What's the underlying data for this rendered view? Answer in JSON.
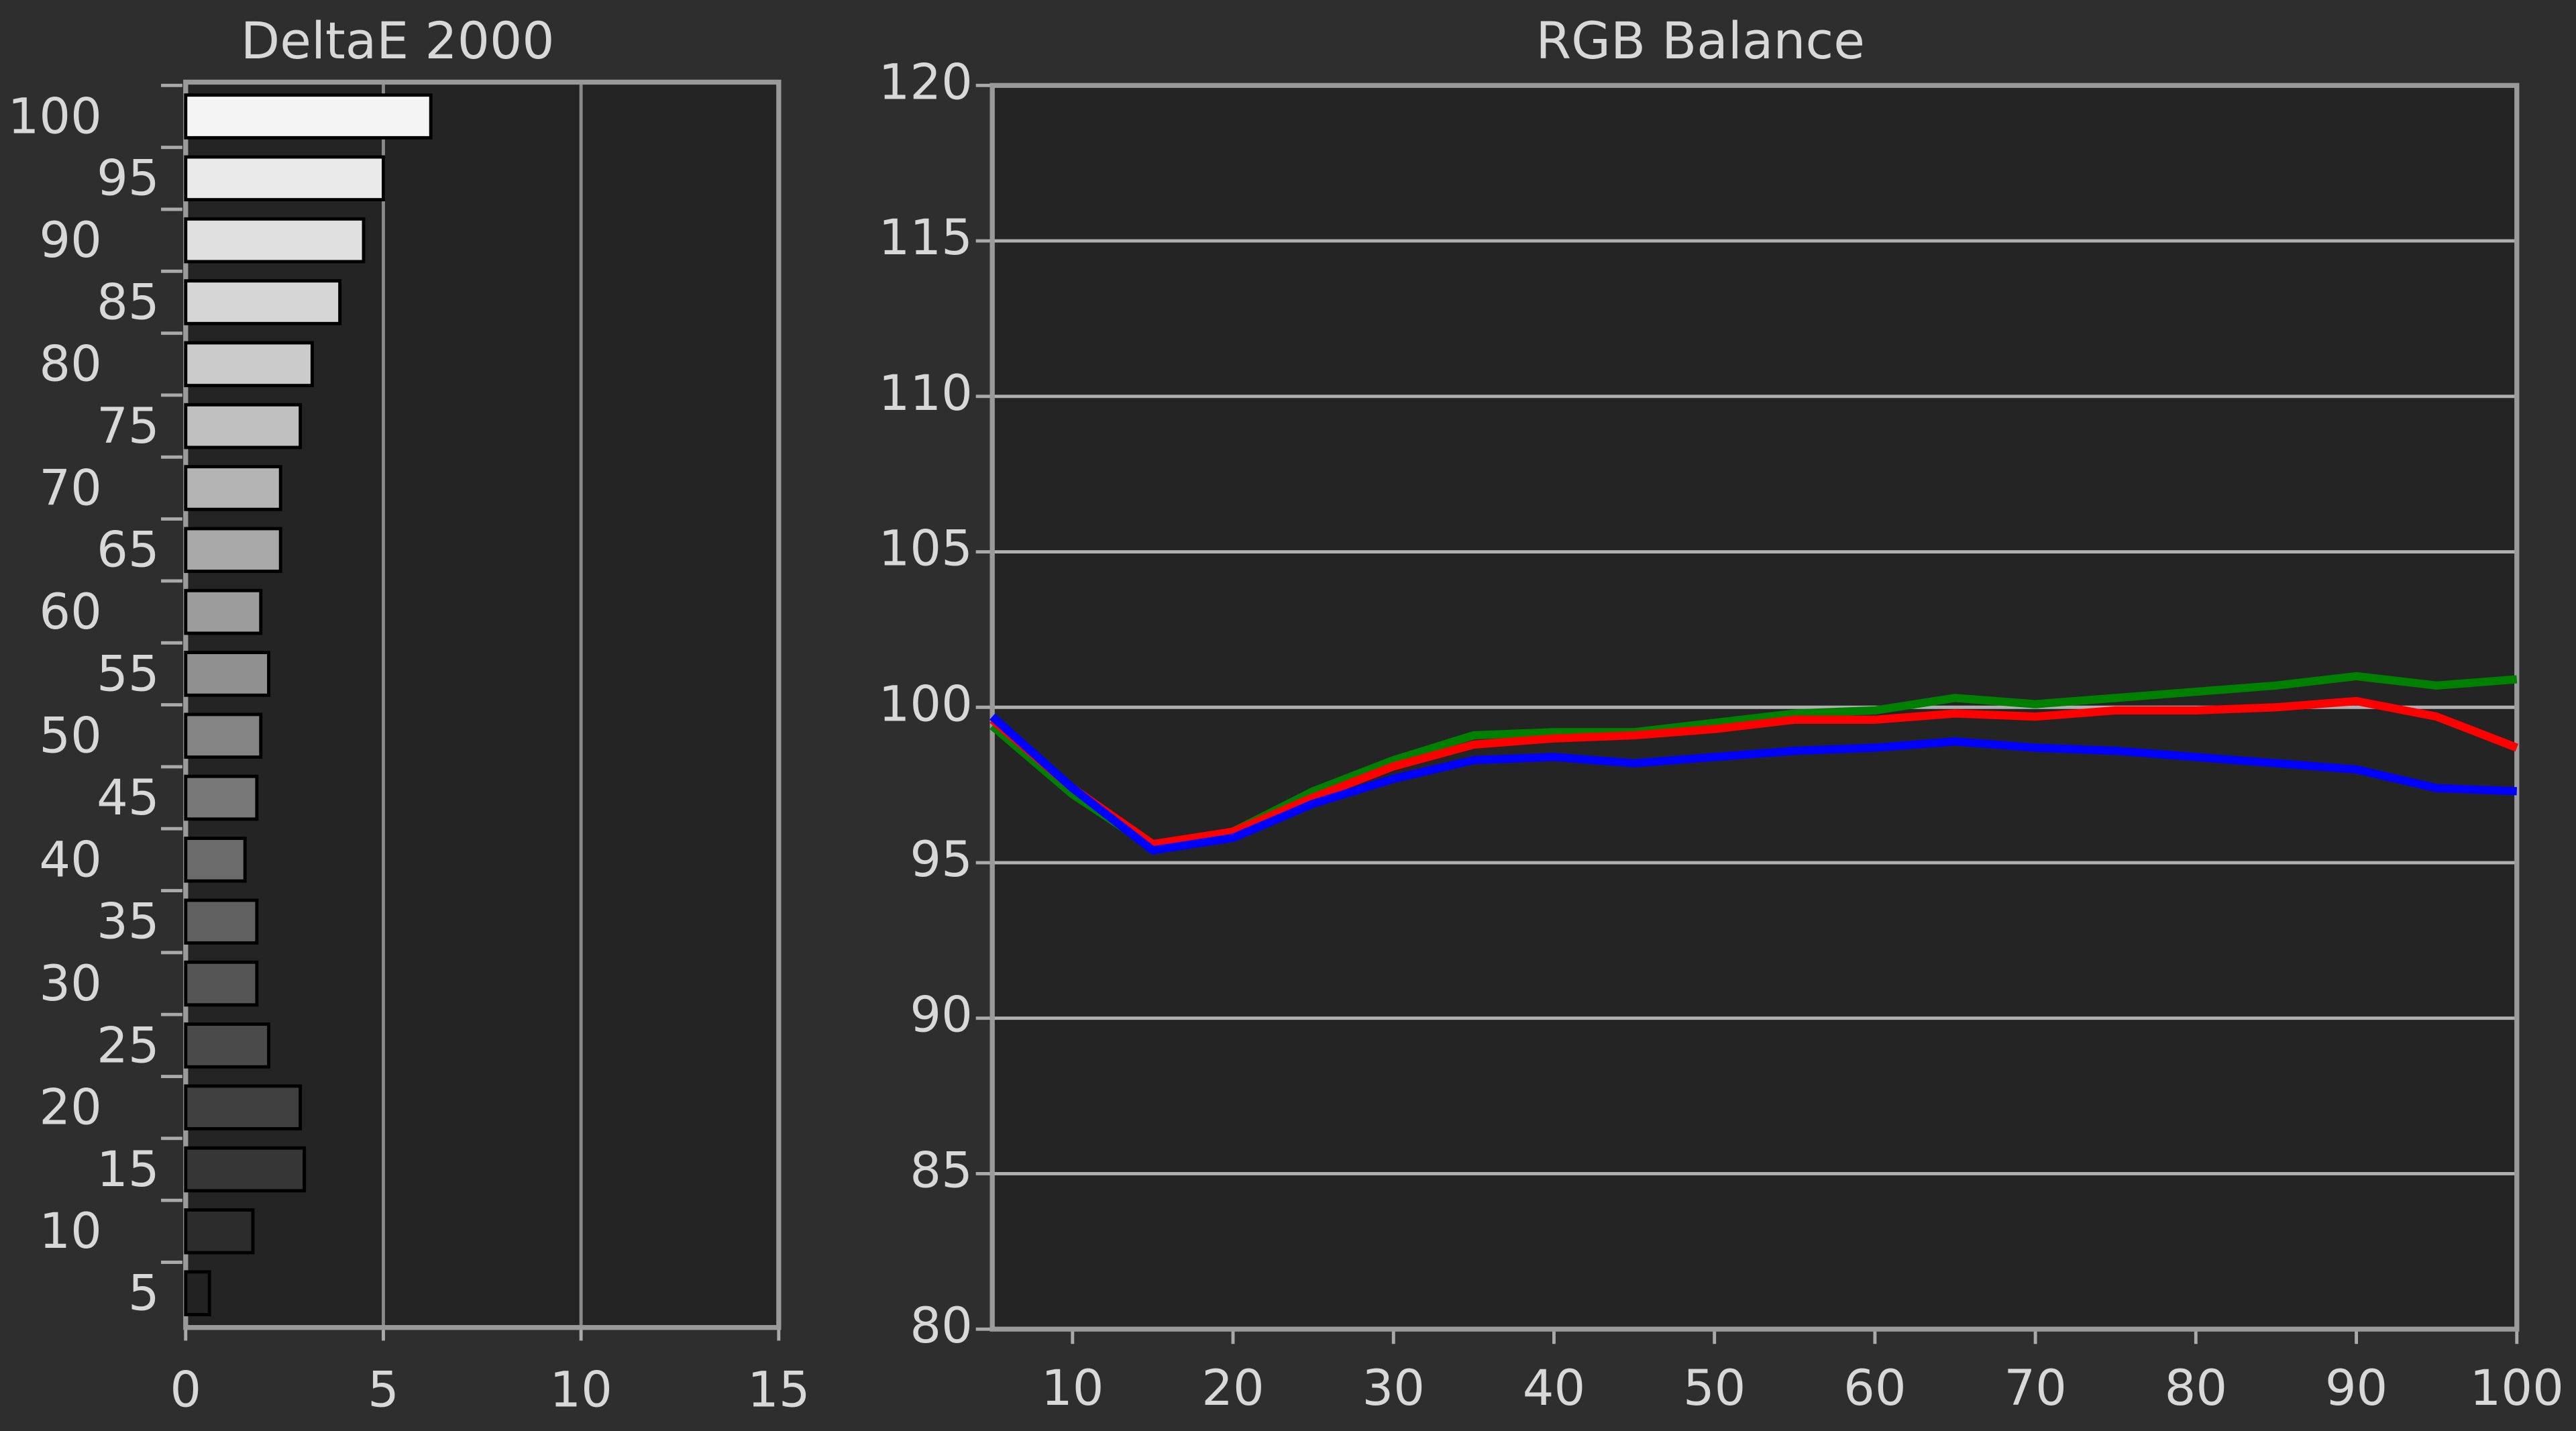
{
  "chart_data": [
    {
      "type": "barh",
      "title": "DeltaE 2000",
      "categories": [
        "100",
        "95",
        "90",
        "85",
        "80",
        "75",
        "70",
        "65",
        "60",
        "55",
        "50",
        "45",
        "40",
        "35",
        "30",
        "25",
        "20",
        "15",
        "10",
        "5"
      ],
      "values": [
        6.2,
        5.0,
        4.5,
        3.9,
        3.2,
        2.9,
        2.4,
        2.4,
        1.9,
        2.1,
        1.9,
        1.8,
        1.5,
        1.8,
        1.8,
        2.1,
        2.9,
        3.0,
        1.7,
        0.6
      ],
      "colors": [
        "#f4f4f4",
        "#eaeaea",
        "#e0e0e0",
        "#d6d6d6",
        "#cbcbcb",
        "#c0c0c0",
        "#b4b4b4",
        "#a8a8a8",
        "#9c9c9c",
        "#909090",
        "#848484",
        "#787878",
        "#6c6c6c",
        "#606060",
        "#555555",
        "#4a4a4a",
        "#404040",
        "#363636",
        "#2c2c2c",
        "#222222"
      ],
      "xlim": [
        0,
        15
      ],
      "xticks": [
        0,
        5,
        10,
        15
      ],
      "grid": true
    },
    {
      "type": "line",
      "title": "RGB Balance",
      "x": [
        5,
        10,
        15,
        20,
        25,
        30,
        35,
        40,
        45,
        50,
        55,
        60,
        65,
        70,
        75,
        80,
        85,
        90,
        95,
        100
      ],
      "series": [
        {
          "color": "#008000",
          "values": [
            99.4,
            97.2,
            95.5,
            96.0,
            97.3,
            98.3,
            99.1,
            99.2,
            99.2,
            99.5,
            99.8,
            99.9,
            100.3,
            100.1,
            100.3,
            100.5,
            100.7,
            101.0,
            100.7,
            100.9
          ]
        },
        {
          "color": "#ff0000",
          "values": [
            99.6,
            97.4,
            95.6,
            96.0,
            97.1,
            98.1,
            98.8,
            99.0,
            99.1,
            99.3,
            99.6,
            99.6,
            99.8,
            99.7,
            99.9,
            99.9,
            100.0,
            100.2,
            99.7,
            98.7
          ]
        },
        {
          "color": "#0000ff",
          "values": [
            99.7,
            97.4,
            95.4,
            95.8,
            96.9,
            97.7,
            98.3,
            98.4,
            98.2,
            98.4,
            98.6,
            98.7,
            98.9,
            98.7,
            98.6,
            98.4,
            98.2,
            98.0,
            97.4,
            97.3
          ]
        }
      ],
      "xlim": [
        5,
        100
      ],
      "xticks": [
        10,
        20,
        30,
        40,
        50,
        60,
        70,
        80,
        90,
        100
      ],
      "ylim": [
        80,
        120
      ],
      "yticks": [
        80,
        85,
        90,
        95,
        100,
        105,
        110,
        115,
        120
      ],
      "grid": true
    }
  ]
}
